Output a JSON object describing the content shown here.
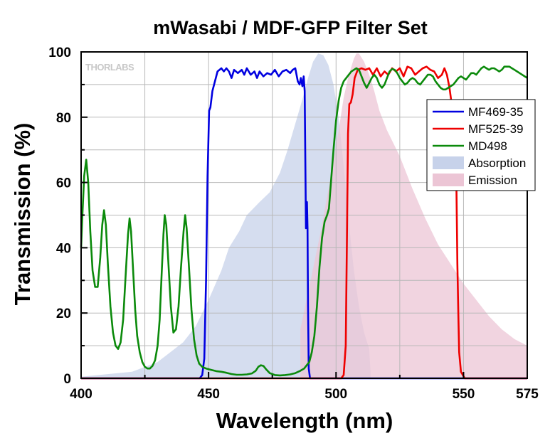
{
  "chart_data": {
    "type": "line",
    "title": "mWasabi / MDF-GFP Filter Set",
    "xlabel": "Wavelength (nm)",
    "ylabel": "Transmission (%)",
    "xlim": [
      400,
      575
    ],
    "ylim": [
      0,
      100
    ],
    "x_ticks": [
      400,
      450,
      500,
      550,
      575
    ],
    "y_ticks": [
      0,
      20,
      40,
      60,
      80,
      100
    ],
    "grid": true,
    "legend_position": "right",
    "watermark": "THORLABS",
    "series": [
      {
        "name": "MF469-35",
        "kind": "line",
        "color": "#0000e0",
        "points": [
          [
            400,
            0
          ],
          [
            446.5,
            0
          ],
          [
            447.5,
            1
          ],
          [
            448.3,
            6
          ],
          [
            449,
            30
          ],
          [
            449.6,
            62
          ],
          [
            450.2,
            82
          ],
          [
            450.7,
            83
          ],
          [
            451.5,
            88
          ],
          [
            452.5,
            91
          ],
          [
            453.5,
            94
          ],
          [
            455,
            95
          ],
          [
            456,
            94
          ],
          [
            457,
            95
          ],
          [
            458,
            94
          ],
          [
            459,
            92
          ],
          [
            460,
            94.5
          ],
          [
            461.5,
            93.5
          ],
          [
            463,
            94.5
          ],
          [
            464,
            93
          ],
          [
            465,
            95
          ],
          [
            466.5,
            93
          ],
          [
            468,
            94
          ],
          [
            469,
            92
          ],
          [
            470,
            94
          ],
          [
            471.5,
            92.5
          ],
          [
            473,
            93.5
          ],
          [
            474.5,
            93
          ],
          [
            476,
            94.5
          ],
          [
            477.5,
            92.5
          ],
          [
            479,
            94
          ],
          [
            480.5,
            94.5
          ],
          [
            482,
            93.5
          ],
          [
            483,
            94.5
          ],
          [
            484,
            95
          ],
          [
            485,
            91
          ],
          [
            485.7,
            90
          ],
          [
            486.2,
            92
          ],
          [
            486.8,
            89.5
          ],
          [
            487.3,
            92.5
          ],
          [
            487.7,
            88
          ],
          [
            488.2,
            46
          ],
          [
            488.4,
            50
          ],
          [
            488.6,
            54
          ],
          [
            488.8,
            46
          ],
          [
            489,
            22
          ],
          [
            489.3,
            3
          ],
          [
            489.8,
            0
          ],
          [
            575,
            0
          ]
        ]
      },
      {
        "name": "MF525-39",
        "kind": "line",
        "color": "#ee0000",
        "points": [
          [
            400,
            0
          ],
          [
            502,
            0
          ],
          [
            503,
            1
          ],
          [
            503.8,
            10
          ],
          [
            504.3,
            45
          ],
          [
            504.7,
            75
          ],
          [
            505.2,
            84
          ],
          [
            505.8,
            84.5
          ],
          [
            506.5,
            87
          ],
          [
            507.3,
            92
          ],
          [
            508.5,
            94.5
          ],
          [
            510,
            95
          ],
          [
            511.5,
            94.5
          ],
          [
            513,
            95
          ],
          [
            514.5,
            93
          ],
          [
            516,
            95
          ],
          [
            517.5,
            92.5
          ],
          [
            519,
            94
          ],
          [
            520.5,
            93
          ],
          [
            522,
            95
          ],
          [
            523.5,
            94
          ],
          [
            525,
            95
          ],
          [
            526.5,
            92.5
          ],
          [
            528,
            95.5
          ],
          [
            529.5,
            95
          ],
          [
            531,
            93
          ],
          [
            532.5,
            94
          ],
          [
            534,
            95
          ],
          [
            535.5,
            95.5
          ],
          [
            537,
            94.5
          ],
          [
            538.5,
            94
          ],
          [
            540,
            92
          ],
          [
            541.5,
            93
          ],
          [
            542.5,
            95
          ],
          [
            543.5,
            93
          ],
          [
            544.5,
            89
          ],
          [
            545.2,
            85
          ],
          [
            546,
            70
          ],
          [
            546.6,
            70
          ],
          [
            547.2,
            60
          ],
          [
            547.6,
            35
          ],
          [
            548,
            18
          ],
          [
            548.3,
            8
          ],
          [
            549,
            2
          ],
          [
            550.5,
            0
          ],
          [
            575,
            0
          ]
        ]
      },
      {
        "name": "MD498",
        "kind": "line",
        "color": "#0b8a0b",
        "points": [
          [
            400,
            40
          ],
          [
            400.5,
            50
          ],
          [
            401.2,
            62
          ],
          [
            402,
            67
          ],
          [
            402.8,
            60
          ],
          [
            403.6,
            45
          ],
          [
            404.5,
            33
          ],
          [
            405.5,
            28
          ],
          [
            406.5,
            28
          ],
          [
            407.5,
            37
          ],
          [
            408.3,
            47
          ],
          [
            409,
            51.5
          ],
          [
            409.7,
            47
          ],
          [
            410.5,
            35
          ],
          [
            411.5,
            22
          ],
          [
            412.5,
            14
          ],
          [
            413.5,
            10
          ],
          [
            414.5,
            9
          ],
          [
            415.5,
            11
          ],
          [
            416.5,
            18
          ],
          [
            417.5,
            32
          ],
          [
            418.4,
            44
          ],
          [
            419,
            49
          ],
          [
            419.6,
            45
          ],
          [
            420.4,
            33
          ],
          [
            421.2,
            21
          ],
          [
            422,
            13
          ],
          [
            423,
            8
          ],
          [
            424,
            5
          ],
          [
            425,
            3.5
          ],
          [
            426,
            3
          ],
          [
            427,
            3
          ],
          [
            428,
            3.8
          ],
          [
            429,
            5.5
          ],
          [
            430,
            10
          ],
          [
            430.8,
            18
          ],
          [
            431.6,
            32
          ],
          [
            432.3,
            44
          ],
          [
            432.8,
            50
          ],
          [
            433.4,
            47
          ],
          [
            434.2,
            36
          ],
          [
            435.2,
            22
          ],
          [
            436.2,
            14
          ],
          [
            437.2,
            15
          ],
          [
            438.2,
            22
          ],
          [
            439.2,
            34
          ],
          [
            440.2,
            45
          ],
          [
            440.8,
            50
          ],
          [
            441.4,
            46
          ],
          [
            442.3,
            34
          ],
          [
            443.3,
            21
          ],
          [
            444.3,
            12
          ],
          [
            445.3,
            7
          ],
          [
            446.3,
            4.5
          ],
          [
            447.5,
            3.5
          ],
          [
            449,
            3
          ],
          [
            451,
            2.6
          ],
          [
            453,
            2.2
          ],
          [
            455,
            2
          ],
          [
            457,
            1.7
          ],
          [
            459,
            1.3
          ],
          [
            461,
            1.1
          ],
          [
            463,
            1.1
          ],
          [
            465,
            1.2
          ],
          [
            467,
            1.5
          ],
          [
            468.5,
            2.3
          ],
          [
            469.5,
            3.5
          ],
          [
            470.5,
            4
          ],
          [
            471.5,
            3.8
          ],
          [
            472.5,
            2.8
          ],
          [
            474,
            1.6
          ],
          [
            476,
            1
          ],
          [
            478,
            0.9
          ],
          [
            480,
            1
          ],
          [
            482,
            1.2
          ],
          [
            484,
            1.6
          ],
          [
            486,
            2.3
          ],
          [
            487.5,
            3
          ],
          [
            488.5,
            4
          ],
          [
            489.5,
            5
          ],
          [
            490.5,
            8
          ],
          [
            491.5,
            13
          ],
          [
            492.5,
            22
          ],
          [
            493.5,
            34
          ],
          [
            494.5,
            43
          ],
          [
            495.5,
            48
          ],
          [
            496.5,
            50
          ],
          [
            497.2,
            52
          ],
          [
            498,
            60
          ],
          [
            499,
            70
          ],
          [
            500,
            79
          ],
          [
            501,
            85
          ],
          [
            502,
            89
          ],
          [
            503,
            91
          ],
          [
            504,
            92
          ],
          [
            505,
            93
          ],
          [
            506,
            94
          ],
          [
            507,
            94.5
          ],
          [
            508,
            95
          ],
          [
            509,
            94.5
          ],
          [
            510,
            92.5
          ],
          [
            511,
            90.5
          ],
          [
            512,
            89
          ],
          [
            513,
            90.5
          ],
          [
            514,
            92
          ],
          [
            515,
            93
          ],
          [
            516,
            92
          ],
          [
            517,
            90
          ],
          [
            518,
            89
          ],
          [
            519,
            90
          ],
          [
            520,
            92
          ],
          [
            521,
            94
          ],
          [
            522,
            94.8
          ],
          [
            523,
            94.5
          ],
          [
            524,
            93.5
          ],
          [
            525,
            92
          ],
          [
            526,
            91
          ],
          [
            527,
            90
          ],
          [
            528,
            90.5
          ],
          [
            529,
            91.5
          ],
          [
            530,
            92
          ],
          [
            531,
            91.5
          ],
          [
            532,
            90.5
          ],
          [
            533,
            90
          ],
          [
            534,
            91
          ],
          [
            535,
            92
          ],
          [
            536,
            93
          ],
          [
            537,
            93
          ],
          [
            538,
            92.5
          ],
          [
            539,
            91
          ],
          [
            540,
            90
          ],
          [
            541,
            89
          ],
          [
            542,
            88.5
          ],
          [
            543,
            88.5
          ],
          [
            544,
            89
          ],
          [
            545,
            89.5
          ],
          [
            546,
            90
          ],
          [
            547,
            91
          ],
          [
            548,
            92
          ],
          [
            549,
            92.5
          ],
          [
            550,
            92
          ],
          [
            551,
            91.5
          ],
          [
            552,
            92.5
          ],
          [
            553,
            93.5
          ],
          [
            554,
            93.5
          ],
          [
            555,
            93
          ],
          [
            556,
            94
          ],
          [
            557,
            95
          ],
          [
            558,
            95.5
          ],
          [
            559,
            95
          ],
          [
            560,
            94.5
          ],
          [
            561,
            95
          ],
          [
            562,
            95
          ],
          [
            563,
            94.5
          ],
          [
            564,
            94
          ],
          [
            565,
            94.5
          ],
          [
            566,
            95.5
          ],
          [
            567,
            95.5
          ],
          [
            568,
            95.5
          ],
          [
            569,
            95
          ],
          [
            570,
            94.5
          ],
          [
            571,
            94
          ],
          [
            572,
            93.5
          ],
          [
            573,
            93
          ],
          [
            574,
            92.5
          ],
          [
            575,
            92
          ]
        ]
      },
      {
        "name": "Absorption",
        "kind": "area",
        "color": "#c7d2ea",
        "points": [
          [
            400,
            0.5
          ],
          [
            420,
            2
          ],
          [
            430,
            5
          ],
          [
            440,
            11
          ],
          [
            445,
            16
          ],
          [
            450,
            24
          ],
          [
            455,
            33
          ],
          [
            458,
            40
          ],
          [
            462,
            45
          ],
          [
            465,
            50
          ],
          [
            470,
            54
          ],
          [
            474,
            57
          ],
          [
            478,
            63
          ],
          [
            481,
            70
          ],
          [
            484,
            78
          ],
          [
            487,
            86
          ],
          [
            489,
            92
          ],
          [
            491,
            97
          ],
          [
            493,
            99.5
          ],
          [
            495,
            99
          ],
          [
            497,
            96
          ],
          [
            499,
            90
          ],
          [
            501,
            80
          ],
          [
            503,
            65
          ],
          [
            505,
            48
          ],
          [
            507,
            33
          ],
          [
            509,
            22
          ],
          [
            511,
            14
          ],
          [
            513,
            9
          ],
          [
            513.5,
            2
          ],
          [
            513.5,
            0
          ],
          [
            400,
            0
          ]
        ]
      },
      {
        "name": "Emission",
        "kind": "area",
        "color": "#ecc5d5",
        "points": [
          [
            486,
            0
          ],
          [
            486,
            15
          ],
          [
            490,
            30
          ],
          [
            494,
            45
          ],
          [
            498,
            62
          ],
          [
            501,
            76
          ],
          [
            503,
            86
          ],
          [
            505,
            93
          ],
          [
            507,
            98
          ],
          [
            508,
            99.5
          ],
          [
            509,
            99.5
          ],
          [
            511,
            97
          ],
          [
            513,
            93
          ],
          [
            515,
            88
          ],
          [
            517,
            82
          ],
          [
            520,
            76
          ],
          [
            525,
            68
          ],
          [
            530,
            58
          ],
          [
            535,
            49
          ],
          [
            540,
            41
          ],
          [
            545,
            35
          ],
          [
            550,
            29
          ],
          [
            555,
            24
          ],
          [
            560,
            19
          ],
          [
            565,
            15
          ],
          [
            570,
            12
          ],
          [
            575,
            10
          ],
          [
            575,
            0
          ],
          [
            486,
            0
          ]
        ]
      }
    ]
  }
}
